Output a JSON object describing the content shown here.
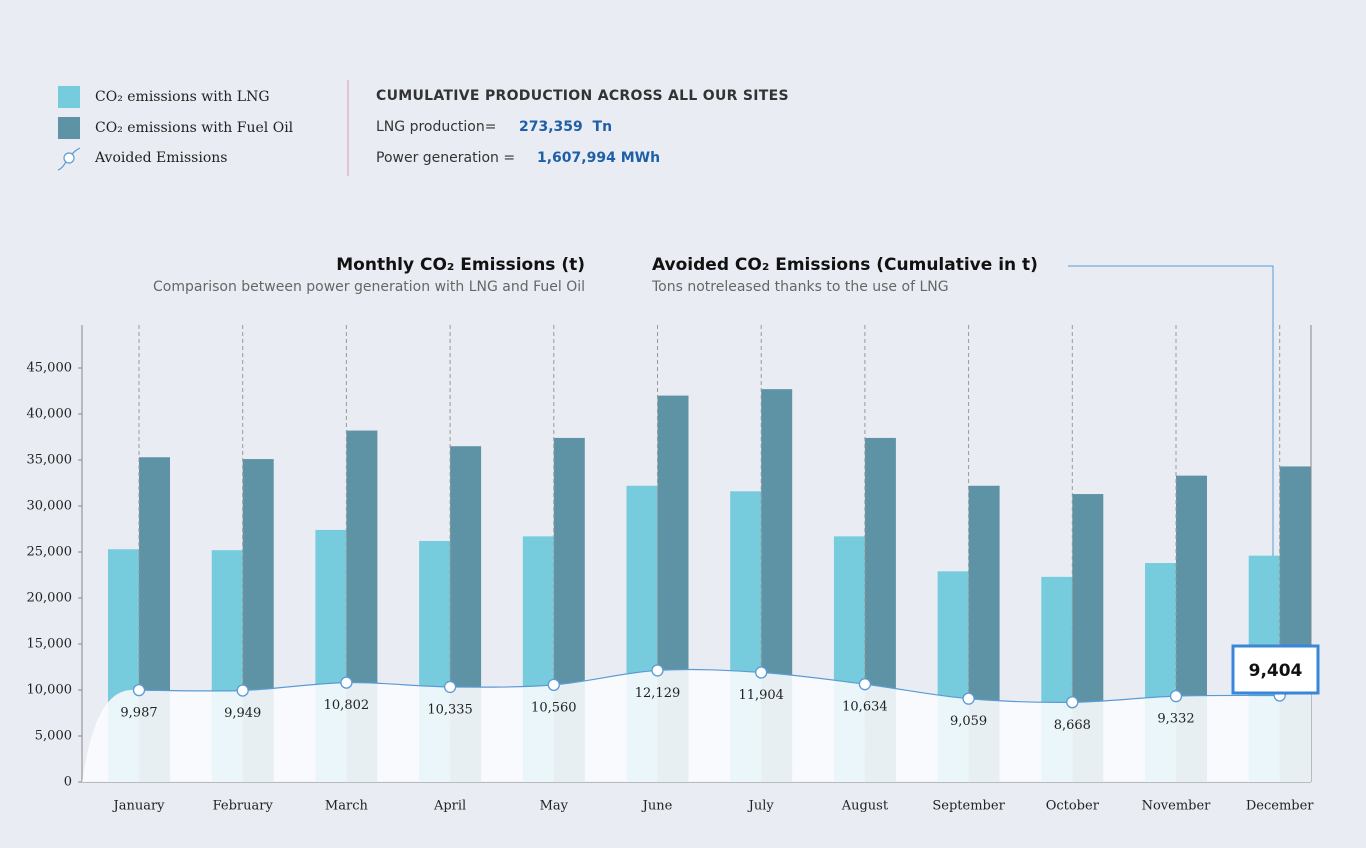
{
  "header": {
    "title": "CUMULATIVE PRODUCTION ACROSS ALL OUR SITES",
    "lng_label": "LNG production=",
    "lng_value": "273,359  Tn",
    "power_label": "Power generation =",
    "power_value": "1,607,994 MWh"
  },
  "chart_data": {
    "type": "bar",
    "title": "Monthly CO₂ Emissions (t)",
    "subtitle": "Comparison between power generation with LNG and Fuel Oil",
    "avoided_title": "Avoided CO₂ Emissions (Cumulative in t)",
    "avoided_subtitle": "Tons notreleased thanks to the use of LNG",
    "categories": [
      "January",
      "February",
      "March",
      "April",
      "May",
      "June",
      "July",
      "August",
      "September",
      "October",
      "November",
      "December"
    ],
    "series": [
      {
        "name": "CO₂ emissions with LNG",
        "color": "#76ccdc",
        "values": [
          25300,
          25200,
          27400,
          26200,
          26700,
          32200,
          31600,
          26700,
          22900,
          22300,
          23800,
          24600
        ]
      },
      {
        "name": "CO₂ emissions with Fuel Oil",
        "color": "#5e93a6",
        "values": [
          35300,
          35100,
          38200,
          36500,
          37400,
          42000,
          42700,
          37400,
          32200,
          31300,
          33300,
          34300
        ]
      },
      {
        "name": "Avoided Emissions",
        "type": "line",
        "color": "#5b9bd5",
        "values": [
          9987,
          9949,
          10802,
          10335,
          10560,
          12129,
          11904,
          10634,
          9059,
          8668,
          9332,
          9404
        ],
        "value_labels": [
          "9,987",
          "9,949",
          "10,802",
          "10,335",
          "10,560",
          "12,129",
          "11,904",
          "10,634",
          "9,059",
          "8,668",
          "9,332",
          "9,404"
        ]
      }
    ],
    "ylim": [
      0,
      50000
    ],
    "yticks": [
      0,
      {
        "value": 5000,
        "label": "5,000"
      },
      {
        "value": 10000,
        "label": "10,000"
      },
      {
        "value": 15000,
        "label": "15,000"
      },
      {
        "value": 20000,
        "label": "20,000"
      },
      {
        "value": 25000,
        "label": "25,000"
      },
      {
        "value": 30000,
        "label": "30,000"
      },
      {
        "value": 35000,
        "label": "35,000"
      },
      {
        "value": 40000,
        "label": "40,000"
      },
      {
        "value": 45000,
        "label": "45,000"
      }
    ]
  }
}
